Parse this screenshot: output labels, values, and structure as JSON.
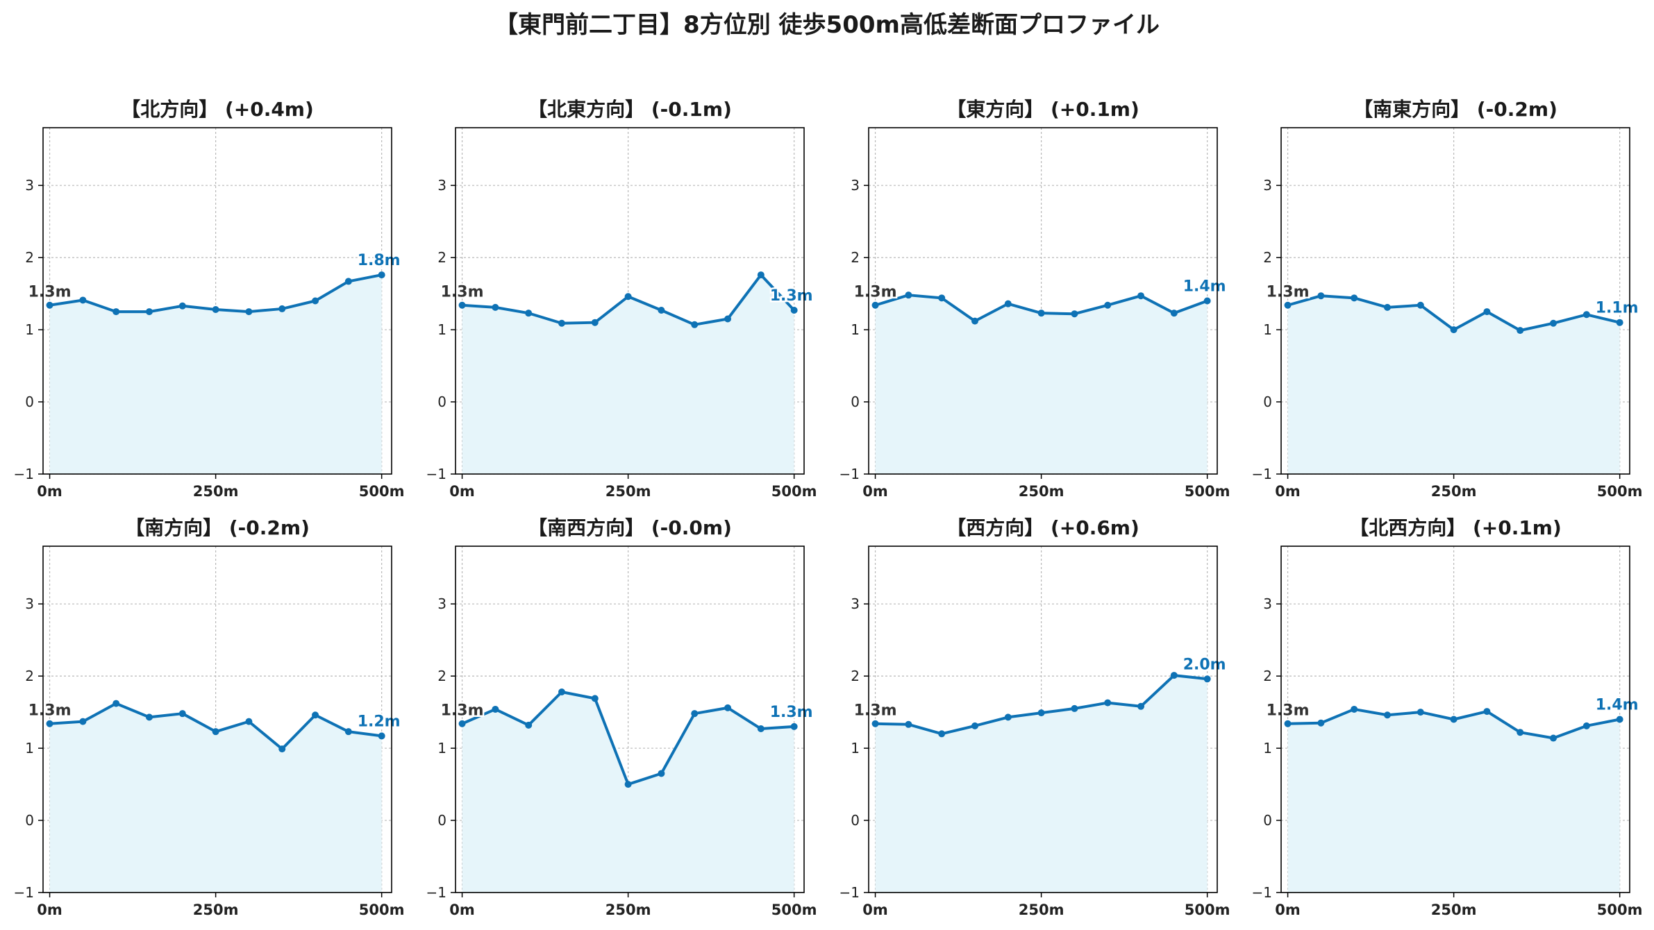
{
  "suptitle": "【東門前二丁目】8方位別 徒歩500m高低差断面プロファイル",
  "colors": {
    "line": "#0e72b5",
    "fill": "#e6f5fa",
    "grid": "#b8b8b8",
    "axis": "#000000",
    "start_label": "#333333"
  },
  "chart_data": [
    {
      "type": "area",
      "title": "【北方向】 (+0.4m)",
      "x_tick_labels": [
        "0m",
        "250m",
        "500m"
      ],
      "y_ticks": [
        -1,
        0,
        1,
        2,
        3
      ],
      "ylim": [
        -1,
        3.8
      ],
      "xlim": [
        -10,
        515
      ],
      "grid": true,
      "start_label": "1.3m",
      "end_label": "1.8m",
      "x": [
        0,
        50,
        100,
        150,
        200,
        250,
        300,
        350,
        400,
        450,
        500
      ],
      "y": [
        1.34,
        1.41,
        1.25,
        1.25,
        1.33,
        1.28,
        1.25,
        1.29,
        1.4,
        1.67,
        1.76
      ]
    },
    {
      "type": "area",
      "title": "【北東方向】 (-0.1m)",
      "x_tick_labels": [
        "0m",
        "250m",
        "500m"
      ],
      "y_ticks": [
        -1,
        0,
        1,
        2,
        3
      ],
      "ylim": [
        -1,
        3.8
      ],
      "xlim": [
        -10,
        515
      ],
      "grid": true,
      "start_label": "1.3m",
      "end_label": "1.3m",
      "x": [
        0,
        50,
        100,
        150,
        200,
        250,
        300,
        350,
        400,
        450,
        500
      ],
      "y": [
        1.34,
        1.31,
        1.23,
        1.09,
        1.1,
        1.46,
        1.27,
        1.07,
        1.15,
        1.76,
        1.27
      ]
    },
    {
      "type": "area",
      "title": "【東方向】 (+0.1m)",
      "x_tick_labels": [
        "0m",
        "250m",
        "500m"
      ],
      "y_ticks": [
        -1,
        0,
        1,
        2,
        3
      ],
      "ylim": [
        -1,
        3.8
      ],
      "xlim": [
        -10,
        515
      ],
      "grid": true,
      "start_label": "1.3m",
      "end_label": "1.4m",
      "x": [
        0,
        50,
        100,
        150,
        200,
        250,
        300,
        350,
        400,
        450,
        500
      ],
      "y": [
        1.34,
        1.48,
        1.44,
        1.12,
        1.36,
        1.23,
        1.22,
        1.34,
        1.47,
        1.23,
        1.4
      ]
    },
    {
      "type": "area",
      "title": "【南東方向】 (-0.2m)",
      "x_tick_labels": [
        "0m",
        "250m",
        "500m"
      ],
      "y_ticks": [
        -1,
        0,
        1,
        2,
        3
      ],
      "ylim": [
        -1,
        3.8
      ],
      "xlim": [
        -10,
        515
      ],
      "grid": true,
      "start_label": "1.3m",
      "end_label": "1.1m",
      "x": [
        0,
        50,
        100,
        150,
        200,
        250,
        300,
        350,
        400,
        450,
        500
      ],
      "y": [
        1.34,
        1.47,
        1.44,
        1.31,
        1.34,
        1.0,
        1.25,
        0.99,
        1.09,
        1.21,
        1.1
      ]
    },
    {
      "type": "area",
      "title": "【南方向】 (-0.2m)",
      "x_tick_labels": [
        "0m",
        "250m",
        "500m"
      ],
      "y_ticks": [
        -1,
        0,
        1,
        2,
        3
      ],
      "ylim": [
        -1,
        3.8
      ],
      "xlim": [
        -10,
        515
      ],
      "grid": true,
      "start_label": "1.3m",
      "end_label": "1.2m",
      "x": [
        0,
        50,
        100,
        150,
        200,
        250,
        300,
        350,
        400,
        450,
        500
      ],
      "y": [
        1.34,
        1.37,
        1.62,
        1.43,
        1.48,
        1.23,
        1.37,
        0.99,
        1.46,
        1.23,
        1.17
      ]
    },
    {
      "type": "area",
      "title": "【南西方向】 (-0.0m)",
      "x_tick_labels": [
        "0m",
        "250m",
        "500m"
      ],
      "y_ticks": [
        -1,
        0,
        1,
        2,
        3
      ],
      "ylim": [
        -1,
        3.8
      ],
      "xlim": [
        -10,
        515
      ],
      "grid": true,
      "start_label": "1.3m",
      "end_label": "1.3m",
      "x": [
        0,
        50,
        100,
        150,
        200,
        250,
        300,
        350,
        400,
        450,
        500
      ],
      "y": [
        1.34,
        1.54,
        1.32,
        1.78,
        1.69,
        0.5,
        0.65,
        1.48,
        1.56,
        1.27,
        1.3
      ]
    },
    {
      "type": "area",
      "title": "【西方向】 (+0.6m)",
      "x_tick_labels": [
        "0m",
        "250m",
        "500m"
      ],
      "y_ticks": [
        -1,
        0,
        1,
        2,
        3
      ],
      "ylim": [
        -1,
        3.8
      ],
      "xlim": [
        -10,
        515
      ],
      "grid": true,
      "start_label": "1.3m",
      "end_label": "2.0m",
      "x": [
        0,
        50,
        100,
        150,
        200,
        250,
        300,
        350,
        400,
        450,
        500
      ],
      "y": [
        1.34,
        1.33,
        1.2,
        1.31,
        1.43,
        1.49,
        1.55,
        1.63,
        1.58,
        2.01,
        1.96
      ]
    },
    {
      "type": "area",
      "title": "【北西方向】 (+0.1m)",
      "x_tick_labels": [
        "0m",
        "250m",
        "500m"
      ],
      "y_ticks": [
        -1,
        0,
        1,
        2,
        3
      ],
      "ylim": [
        -1,
        3.8
      ],
      "xlim": [
        -10,
        515
      ],
      "grid": true,
      "start_label": "1.3m",
      "end_label": "1.4m",
      "x": [
        0,
        50,
        100,
        150,
        200,
        250,
        300,
        350,
        400,
        450,
        500
      ],
      "y": [
        1.34,
        1.35,
        1.54,
        1.46,
        1.5,
        1.4,
        1.51,
        1.22,
        1.14,
        1.31,
        1.4
      ]
    }
  ]
}
